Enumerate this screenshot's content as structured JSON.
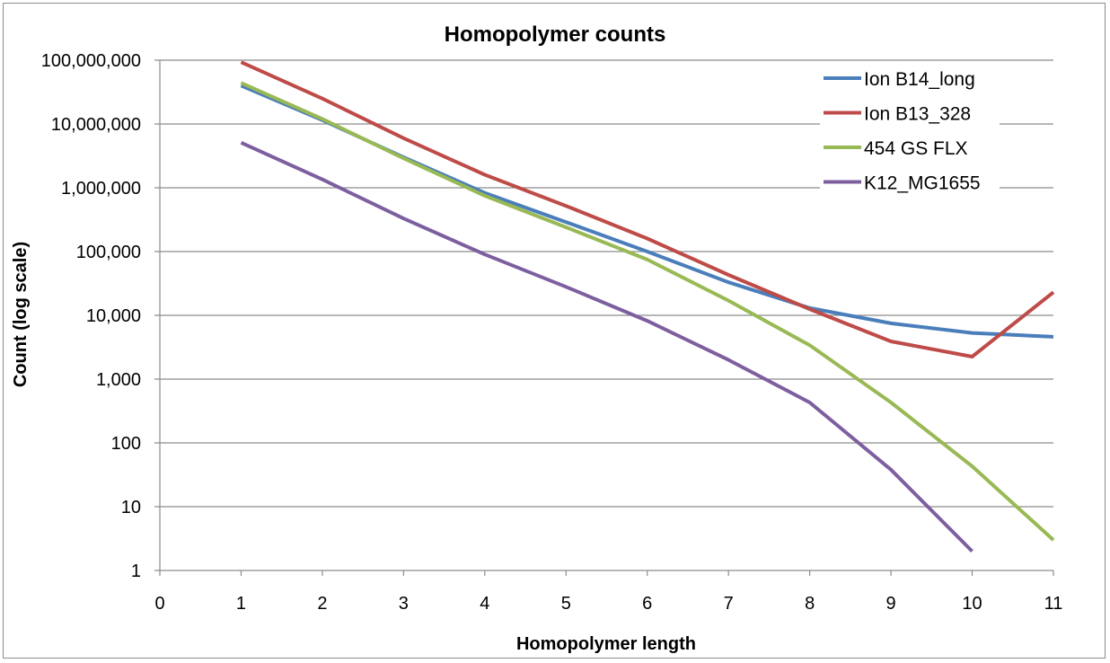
{
  "chart_data": {
    "type": "line",
    "title": "Homopolymer counts",
    "xlabel": "Homopolymer length",
    "ylabel": "Count (log scale)",
    "x_scale": "linear",
    "y_scale": "log",
    "xlim": [
      0,
      11
    ],
    "ylim": [
      1,
      100000000
    ],
    "x_ticks": [
      "0",
      "1",
      "2",
      "3",
      "4",
      "5",
      "6",
      "7",
      "8",
      "9",
      "10",
      "11"
    ],
    "y_ticks": [
      "1",
      "10",
      "100",
      "1,000",
      "10,000",
      "100,000",
      "1,000,000",
      "10,000,000",
      "100,000,000"
    ],
    "y_tick_values": [
      1,
      10,
      100,
      1000,
      10000,
      100000,
      1000000,
      10000000,
      100000000
    ],
    "grid": "horizontal",
    "legend_position": "top-right",
    "series": [
      {
        "name": "Ion B14_long",
        "color": "#4a7ebb",
        "x": [
          1,
          2,
          3,
          4,
          5,
          6,
          7,
          8,
          9,
          10,
          11
        ],
        "values": [
          40000000,
          11500000,
          3000000,
          830000,
          290000,
          100000,
          33000,
          13000,
          7500,
          5300,
          4600
        ]
      },
      {
        "name": "Ion B13_328",
        "color": "#be4b48",
        "x": [
          1,
          2,
          3,
          4,
          5,
          6,
          7,
          8,
          9,
          10,
          11
        ],
        "values": [
          93000000,
          25000000,
          6000000,
          1600000,
          520000,
          160000,
          43000,
          12500,
          3900,
          2250,
          23000
        ]
      },
      {
        "name": "454 GS FLX",
        "color": "#98b954",
        "x": [
          1,
          2,
          3,
          4,
          5,
          6,
          7,
          8,
          9,
          10,
          11
        ],
        "values": [
          44000000,
          12000000,
          2900000,
          750000,
          240000,
          75000,
          17000,
          3400,
          430,
          43,
          3
        ]
      },
      {
        "name": "K12_MG1655",
        "color": "#7d5fa0",
        "x": [
          1,
          2,
          3,
          4,
          5,
          6,
          7,
          8,
          9,
          10
        ],
        "values": [
          5100000,
          1350000,
          330000,
          90000,
          28000,
          8200,
          2000,
          430,
          38,
          2
        ]
      }
    ]
  }
}
